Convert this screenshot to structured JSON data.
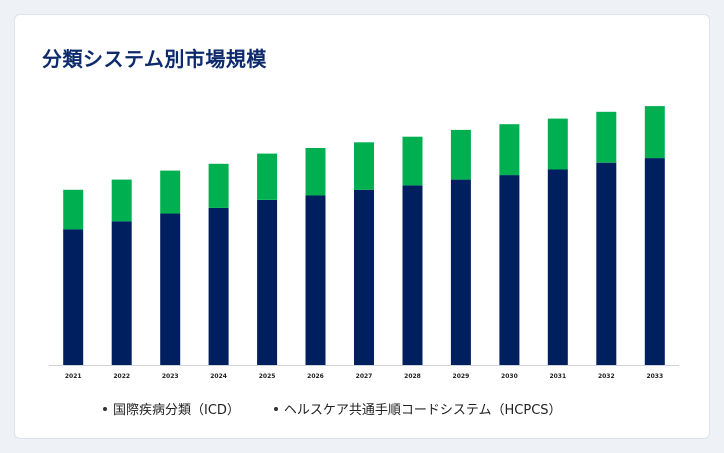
{
  "title": "分類システム別市場規模",
  "chart_data": {
    "type": "bar",
    "stacked": true,
    "title": "分類システム別市場規模",
    "xlabel": "",
    "ylabel": "",
    "categories": [
      "2021",
      "2022",
      "2023",
      "2024",
      "2025",
      "2026",
      "2027",
      "2028",
      "2029",
      "2030",
      "2031",
      "2032",
      "2033"
    ],
    "series": [
      {
        "name": "国際疾病分類（ICD）",
        "color": "#001f5f",
        "values": [
          120,
          127,
          134,
          139,
          146,
          150,
          155,
          159,
          164,
          168,
          173,
          179,
          183
        ]
      },
      {
        "name": "ヘルスケア共通手順コードシステム（HCPCS）",
        "color": "#00b050",
        "values": [
          35,
          37,
          38,
          39,
          41,
          42,
          42,
          43,
          44,
          45,
          45,
          45,
          46
        ]
      }
    ],
    "ylim": [
      0,
      230
    ],
    "grid": false,
    "legend_position": "bottom"
  }
}
